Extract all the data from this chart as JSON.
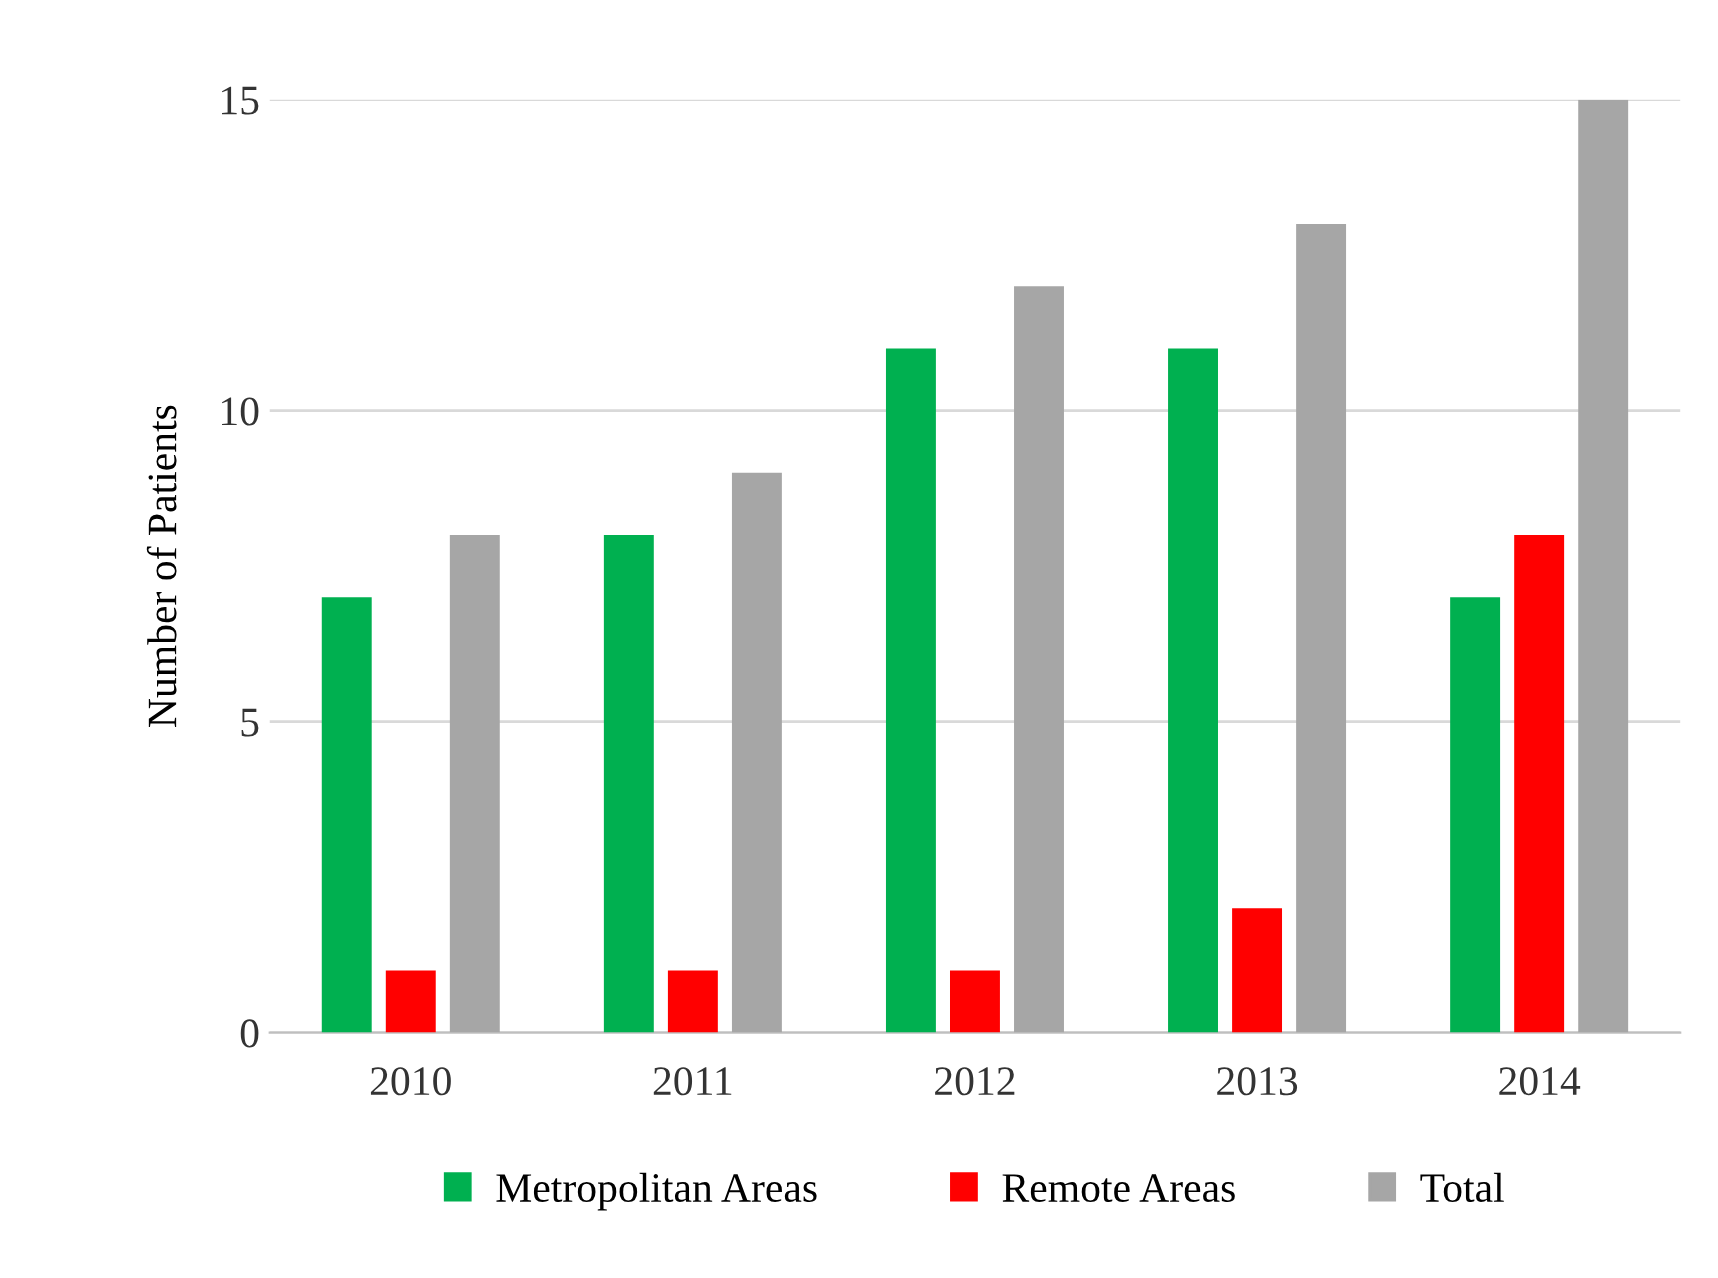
{
  "chart_data": {
    "type": "bar",
    "ylabel": "Number of Patients",
    "categories": [
      "2010",
      "2011",
      "2012",
      "2013",
      "2014"
    ],
    "series": [
      {
        "name": "Metropolitan Areas",
        "color": "#00b050",
        "values": [
          7,
          8,
          11,
          11,
          7
        ]
      },
      {
        "name": "Remote Areas",
        "color": "#ff0000",
        "values": [
          1,
          1,
          1,
          2,
          8
        ]
      },
      {
        "name": "Total",
        "color": "#a6a6a6",
        "values": [
          8,
          9,
          12,
          13,
          15
        ]
      }
    ],
    "ylim": [
      0,
      15
    ],
    "yticks": [
      0,
      5,
      10,
      15
    ],
    "grid": "y",
    "legend": "bottom"
  }
}
